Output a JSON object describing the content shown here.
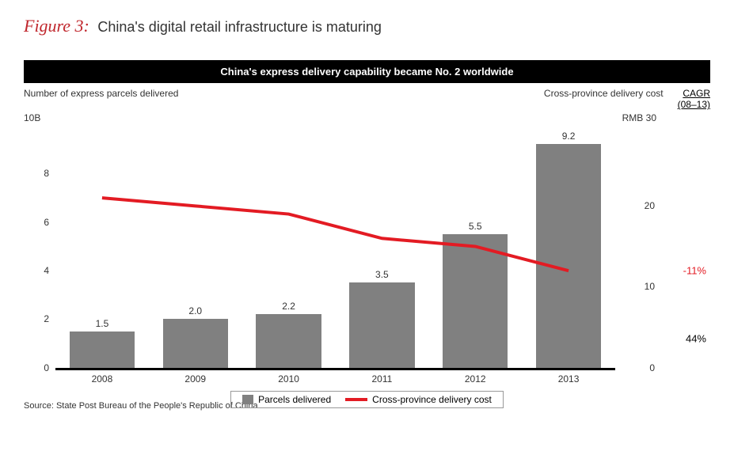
{
  "figure": {
    "label": "Figure 3:",
    "title": "China's digital retail infrastructure is maturing"
  },
  "banner": "China's express delivery capability became No. 2 worldwide",
  "chart": {
    "type": "bar+line",
    "left_axis_title": "Number of express parcels delivered",
    "left_axis_top": "10B",
    "right_axis_title": "Cross-province delivery cost",
    "right_axis_top": "RMB 30",
    "cagr_header_l1": "CAGR",
    "cagr_header_l2": "(08–13)",
    "cagr_line_label": "-11%",
    "cagr_bar_label": "44%",
    "years": [
      "2008",
      "2009",
      "2010",
      "2011",
      "2012",
      "2013"
    ],
    "bar_values": [
      1.5,
      2.0,
      2.2,
      3.5,
      5.5,
      9.2
    ],
    "bar_display": [
      "1.5",
      "2.0",
      "2.2",
      "3.5",
      "5.5",
      "9.2"
    ],
    "bar_color": "#808080",
    "left_ymax": 10,
    "left_ticks": [
      0,
      2,
      4,
      6,
      8
    ],
    "left_tick_labels": [
      "0",
      "2",
      "4",
      "6",
      "8"
    ],
    "right_ymax": 30,
    "right_ticks": [
      0,
      10,
      20
    ],
    "right_tick_labels": [
      "0",
      "10",
      "20"
    ],
    "line_values": [
      21,
      20,
      19,
      16,
      15,
      12
    ],
    "line_color": "#e31b23",
    "line_width": 4,
    "background_color": "#ffffff"
  },
  "legend": {
    "bar_label": "Parcels delivered",
    "line_label": "Cross-province delivery cost"
  },
  "source": "Source: State Post Bureau of the People's Republic of China"
}
